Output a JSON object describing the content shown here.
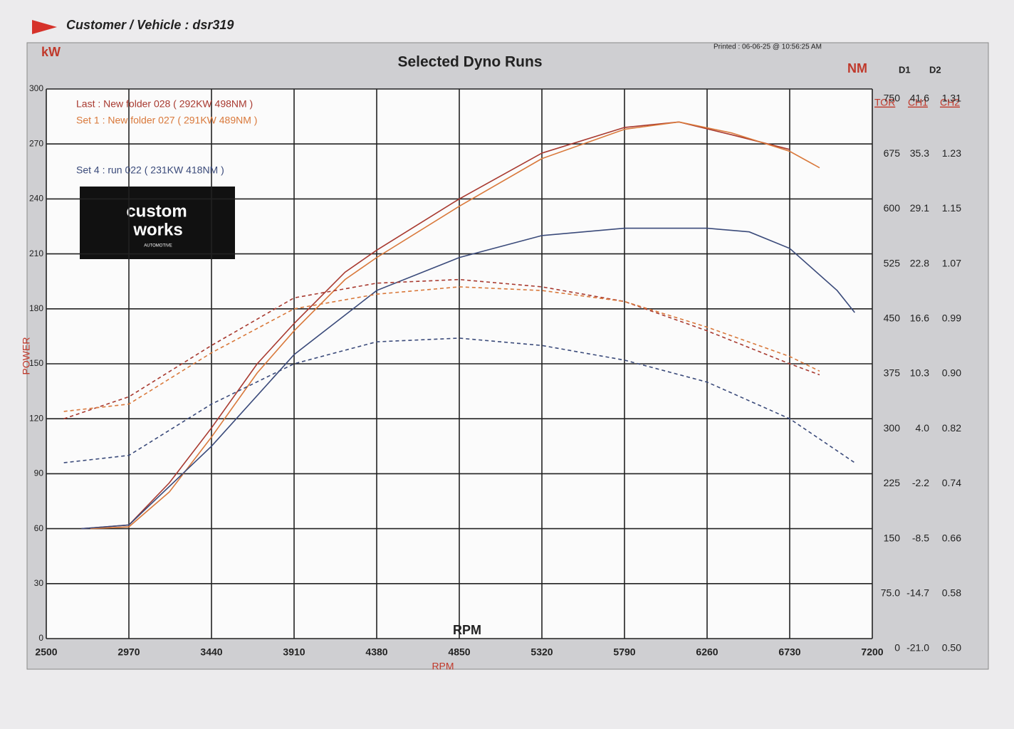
{
  "header": {
    "customer": "Customer / Vehicle : dsr319",
    "printed": "Printed : 06-06-25 @ 10:56:25 AM"
  },
  "logo": {
    "line1": "custom",
    "line2": "works",
    "line3": "AUTOMOTIVE"
  },
  "chart_data": {
    "type": "line",
    "title": "Selected Dyno Runs",
    "y_unit": "kW",
    "y2_unit": "NM",
    "channel_headers": [
      "D1",
      "D2"
    ],
    "ylabel": "POWER",
    "xlabel": "RPM",
    "center_label": "RPM",
    "xlim": [
      2500,
      7200
    ],
    "xticks": [
      2500,
      2970,
      3440,
      3910,
      4380,
      4850,
      5320,
      5790,
      6260,
      6730,
      7200
    ],
    "ylim": [
      0,
      300
    ],
    "yticks": [
      0,
      30,
      60,
      90,
      120,
      150,
      180,
      210,
      240,
      270,
      300
    ],
    "y2lim": [
      0,
      750
    ],
    "y2_header": "TOR",
    "y2ticks": [
      0,
      {
        "value": 75,
        "label": "75.0"
      },
      150,
      225,
      300,
      375,
      450,
      525,
      600,
      675,
      750
    ],
    "y2_columns": [
      {
        "name": "CH1",
        "labels": [
          "-21.0",
          "-14.7",
          "-8.5",
          "-2.2",
          "4.0",
          "10.3",
          "16.6",
          "22.8",
          "29.1",
          "35.3",
          "41.6"
        ]
      },
      {
        "name": "CH2",
        "labels": [
          "0.50",
          "0.58",
          "0.66",
          "0.74",
          "0.82",
          "0.90",
          "0.99",
          "1.07",
          "1.15",
          "1.23",
          "1.31"
        ]
      }
    ],
    "grid": true,
    "series": [
      {
        "name": "Last : New folder 028 ( 292KW  498NM )",
        "color": "#a8392f",
        "dash": false,
        "x": [
          2700,
          2970,
          3200,
          3440,
          3700,
          3910,
          4200,
          4380,
          4850,
          5320,
          5790,
          6100,
          6400,
          6730
        ],
        "values": [
          60,
          62,
          85,
          115,
          150,
          172,
          200,
          212,
          240,
          265,
          279,
          282,
          275,
          267
        ]
      },
      {
        "name": "Set 1 : New folder 027 ( 291KW  489NM )",
        "color": "#d9783a",
        "dash": false,
        "x": [
          2750,
          2970,
          3200,
          3440,
          3700,
          3910,
          4200,
          4380,
          4850,
          5320,
          5790,
          6100,
          6400,
          6730,
          6900
        ],
        "values": [
          60,
          61,
          80,
          110,
          145,
          168,
          196,
          208,
          236,
          262,
          278,
          282,
          276,
          266,
          257
        ]
      },
      {
        "name": "Set 4 : run 022 ( 231KW  418NM )",
        "color": "#3a4a7a",
        "dash": false,
        "x": [
          2700,
          2970,
          3440,
          3910,
          4380,
          4850,
          5320,
          5790,
          6260,
          6500,
          6730,
          7000,
          7100
        ],
        "values": [
          60,
          62,
          105,
          155,
          190,
          208,
          220,
          224,
          224,
          222,
          213,
          190,
          178
        ]
      },
      {
        "color": "#a8392f",
        "dash": true,
        "axis": "y2",
        "x": [
          2600,
          2970,
          3440,
          3910,
          4380,
          4850,
          5320,
          5790,
          6260,
          6730,
          6900
        ],
        "values": [
          300,
          330,
          400,
          465,
          485,
          490,
          480,
          460,
          420,
          375,
          360
        ]
      },
      {
        "color": "#d9783a",
        "dash": true,
        "axis": "y2",
        "x": [
          2600,
          2970,
          3440,
          3910,
          4380,
          4850,
          5320,
          5790,
          6260,
          6730,
          6900
        ],
        "values": [
          310,
          320,
          390,
          450,
          470,
          480,
          475,
          460,
          425,
          385,
          365
        ]
      },
      {
        "color": "#3a4a7a",
        "dash": true,
        "axis": "y2",
        "x": [
          2600,
          2970,
          3440,
          3910,
          4380,
          4850,
          5320,
          5790,
          6260,
          6730,
          7100
        ],
        "values": [
          240,
          250,
          320,
          375,
          405,
          410,
          400,
          380,
          350,
          300,
          240
        ]
      }
    ]
  }
}
